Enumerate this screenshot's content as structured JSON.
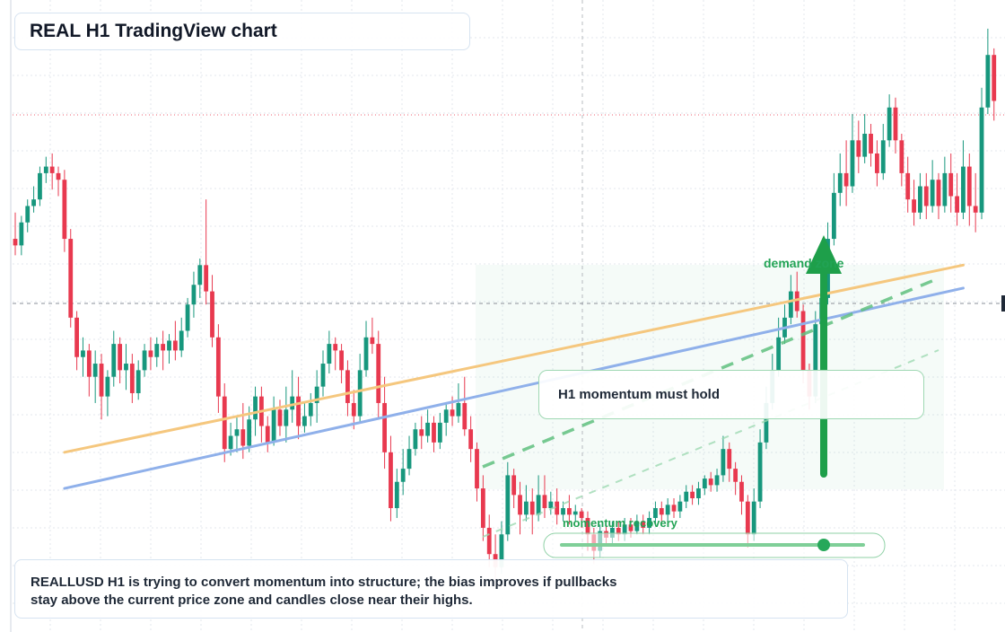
{
  "title": "REAL H1 TradingView chart",
  "colors": {
    "up": "#17977d",
    "down": "#e8394f",
    "orange_line": "#f5c77e",
    "blue_line": "#8fb0ea",
    "green": "#22a355",
    "green_dash": "#6cc78d",
    "grid": "#e3e7ee"
  },
  "annotations": {
    "demand_label": "demand zone",
    "momentum_label": "momentum recovery",
    "note": "H1 momentum must hold"
  },
  "summary": {
    "line1": "REALLUSD H1 is trying to convert momentum into structure; the bias improves if pullbacks",
    "line2": "stay above the current price zone and candles close near their highs."
  },
  "chart_data": {
    "type": "candlestick",
    "symbol": "REALLUSD",
    "timeframe": "H1",
    "candles": [
      [
        120,
        118,
        115,
        128
      ],
      [
        118,
        125,
        115,
        127
      ],
      [
        125,
        130,
        122,
        132
      ],
      [
        130,
        132,
        128,
        136
      ],
      [
        132,
        140,
        130,
        142
      ],
      [
        140,
        142,
        137,
        145
      ],
      [
        142,
        140,
        135,
        146
      ],
      [
        140,
        138,
        133,
        142
      ],
      [
        138,
        120,
        116,
        141
      ],
      [
        120,
        96,
        93,
        123
      ],
      [
        96,
        84,
        80,
        98
      ],
      [
        84,
        86,
        78,
        90
      ],
      [
        86,
        78,
        72,
        88
      ],
      [
        78,
        82,
        70,
        86
      ],
      [
        82,
        72,
        65,
        85
      ],
      [
        72,
        78,
        66,
        80
      ],
      [
        78,
        88,
        75,
        92
      ],
      [
        88,
        80,
        76,
        90
      ],
      [
        80,
        82,
        74,
        88
      ],
      [
        82,
        73,
        70,
        85
      ],
      [
        73,
        80,
        71,
        83
      ],
      [
        80,
        86,
        78,
        88
      ],
      [
        86,
        84,
        80,
        90
      ],
      [
        84,
        88,
        81,
        90
      ],
      [
        88,
        86,
        80,
        92
      ],
      [
        86,
        89,
        82,
        91
      ],
      [
        89,
        86,
        83,
        95
      ],
      [
        86,
        92,
        84,
        96
      ],
      [
        92,
        100,
        90,
        102
      ],
      [
        100,
        106,
        96,
        110
      ],
      [
        106,
        112,
        102,
        114
      ],
      [
        112,
        104,
        100,
        132
      ],
      [
        104,
        90,
        87,
        109
      ],
      [
        90,
        72,
        67,
        94
      ],
      [
        72,
        56,
        52,
        76
      ],
      [
        56,
        60,
        54,
        64
      ],
      [
        60,
        62,
        55,
        66
      ],
      [
        62,
        57,
        53,
        70
      ],
      [
        57,
        65,
        55,
        69
      ],
      [
        65,
        72,
        60,
        75
      ],
      [
        72,
        63,
        58,
        75
      ],
      [
        63,
        58,
        55,
        66
      ],
      [
        58,
        68,
        57,
        72
      ],
      [
        68,
        63,
        60,
        71
      ],
      [
        63,
        68,
        58,
        75
      ],
      [
        68,
        72,
        64,
        80
      ],
      [
        72,
        63,
        59,
        78
      ],
      [
        63,
        66,
        61,
        70
      ],
      [
        66,
        70,
        63,
        73
      ],
      [
        70,
        75,
        64,
        80
      ],
      [
        75,
        82,
        72,
        86
      ],
      [
        82,
        88,
        79,
        92
      ],
      [
        88,
        86,
        80,
        90
      ],
      [
        86,
        80,
        76,
        88
      ],
      [
        80,
        70,
        66,
        83
      ],
      [
        70,
        66,
        62,
        74
      ],
      [
        66,
        80,
        64,
        85
      ],
      [
        80,
        90,
        78,
        95
      ],
      [
        90,
        88,
        85,
        96
      ],
      [
        88,
        70,
        65,
        92
      ],
      [
        70,
        55,
        50,
        78
      ],
      [
        55,
        38,
        34,
        60
      ],
      [
        38,
        46,
        35,
        50
      ],
      [
        46,
        50,
        42,
        56
      ],
      [
        50,
        56,
        48,
        60
      ],
      [
        56,
        62,
        54,
        64
      ],
      [
        62,
        60,
        56,
        66
      ],
      [
        60,
        64,
        58,
        68
      ],
      [
        64,
        58,
        55,
        66
      ],
      [
        58,
        64,
        56,
        67
      ],
      [
        64,
        68,
        60,
        70
      ],
      [
        68,
        66,
        63,
        72
      ],
      [
        66,
        70,
        64,
        76
      ],
      [
        70,
        62,
        60,
        78
      ],
      [
        62,
        56,
        52,
        66
      ],
      [
        56,
        44,
        40,
        58
      ],
      [
        44,
        32,
        28,
        48
      ],
      [
        32,
        24,
        20,
        36
      ],
      [
        24,
        20,
        16,
        30
      ],
      [
        20,
        30,
        18,
        34
      ],
      [
        30,
        48,
        28,
        52
      ],
      [
        48,
        42,
        38,
        50
      ],
      [
        42,
        36,
        30,
        46
      ],
      [
        36,
        40,
        34,
        45
      ],
      [
        40,
        36,
        30,
        44
      ],
      [
        36,
        42,
        34,
        48
      ],
      [
        42,
        38,
        35,
        48
      ],
      [
        38,
        40,
        36,
        43
      ],
      [
        40,
        36,
        33,
        44
      ],
      [
        36,
        38,
        34,
        40
      ],
      [
        38,
        36,
        33,
        42
      ],
      [
        36,
        37,
        34,
        39
      ],
      [
        37,
        35,
        32,
        38
      ],
      [
        35,
        30,
        25,
        37
      ],
      [
        30,
        25,
        21,
        32
      ],
      [
        25,
        31,
        23,
        33
      ],
      [
        31,
        29,
        27,
        33
      ],
      [
        29,
        32,
        27,
        34
      ],
      [
        32,
        30,
        28,
        34
      ],
      [
        30,
        33,
        28,
        35
      ],
      [
        33,
        31,
        29,
        35
      ],
      [
        31,
        34,
        30,
        36
      ],
      [
        34,
        32,
        30,
        36
      ],
      [
        32,
        35,
        30,
        37
      ],
      [
        35,
        38,
        33,
        40
      ],
      [
        38,
        36,
        34,
        40
      ],
      [
        36,
        39,
        34,
        41
      ],
      [
        39,
        37,
        35,
        41
      ],
      [
        37,
        40,
        35,
        42
      ],
      [
        40,
        43,
        38,
        45
      ],
      [
        43,
        41,
        39,
        45
      ],
      [
        41,
        44,
        39,
        46
      ],
      [
        44,
        47,
        42,
        48
      ],
      [
        47,
        45,
        43,
        49
      ],
      [
        45,
        48,
        43,
        50
      ],
      [
        48,
        56,
        46,
        60
      ],
      [
        56,
        50,
        46,
        58
      ],
      [
        50,
        46,
        42,
        52
      ],
      [
        46,
        40,
        36,
        48
      ],
      [
        40,
        30,
        26,
        42
      ],
      [
        30,
        40,
        28,
        44
      ],
      [
        40,
        58,
        38,
        62
      ],
      [
        58,
        70,
        56,
        75
      ],
      [
        70,
        80,
        68,
        85
      ],
      [
        80,
        90,
        78,
        96
      ],
      [
        90,
        96,
        88,
        100
      ],
      [
        96,
        104,
        94,
        109
      ],
      [
        104,
        98,
        96,
        110
      ],
      [
        98,
        80,
        76,
        100
      ],
      [
        80,
        72,
        68,
        82
      ],
      [
        72,
        94,
        70,
        98
      ],
      [
        94,
        102,
        92,
        106
      ],
      [
        102,
        120,
        100,
        125
      ],
      [
        120,
        134,
        118,
        140
      ],
      [
        134,
        140,
        130,
        146
      ],
      [
        140,
        136,
        130,
        150
      ],
      [
        136,
        150,
        134,
        158
      ],
      [
        150,
        145,
        140,
        156
      ],
      [
        145,
        152,
        143,
        158
      ],
      [
        152,
        146,
        142,
        155
      ],
      [
        146,
        140,
        136,
        150
      ],
      [
        140,
        150,
        138,
        155
      ],
      [
        150,
        160,
        148,
        164
      ],
      [
        160,
        150,
        146,
        163
      ],
      [
        150,
        140,
        136,
        152
      ],
      [
        140,
        132,
        128,
        145
      ],
      [
        132,
        128,
        124,
        138
      ],
      [
        128,
        136,
        126,
        140
      ],
      [
        136,
        130,
        126,
        140
      ],
      [
        130,
        138,
        128,
        144
      ],
      [
        138,
        130,
        126,
        140
      ],
      [
        130,
        140,
        128,
        145
      ],
      [
        140,
        133,
        128,
        146
      ],
      [
        133,
        128,
        124,
        140
      ],
      [
        128,
        142,
        126,
        150
      ],
      [
        142,
        130,
        124,
        146
      ],
      [
        130,
        128,
        122,
        140
      ],
      [
        128,
        160,
        126,
        166
      ],
      [
        160,
        176,
        158,
        184
      ],
      [
        176,
        162,
        156,
        178
      ]
    ],
    "ylim": [
      0,
      190
    ],
    "trendlines": [
      {
        "color_key": "orange_line",
        "from": [
          8,
          55
        ],
        "to": [
          154,
          112
        ]
      },
      {
        "color_key": "blue_line",
        "from": [
          8,
          44
        ],
        "to": [
          154,
          105
        ]
      }
    ],
    "reference_levels": [
      159,
      113
    ]
  }
}
